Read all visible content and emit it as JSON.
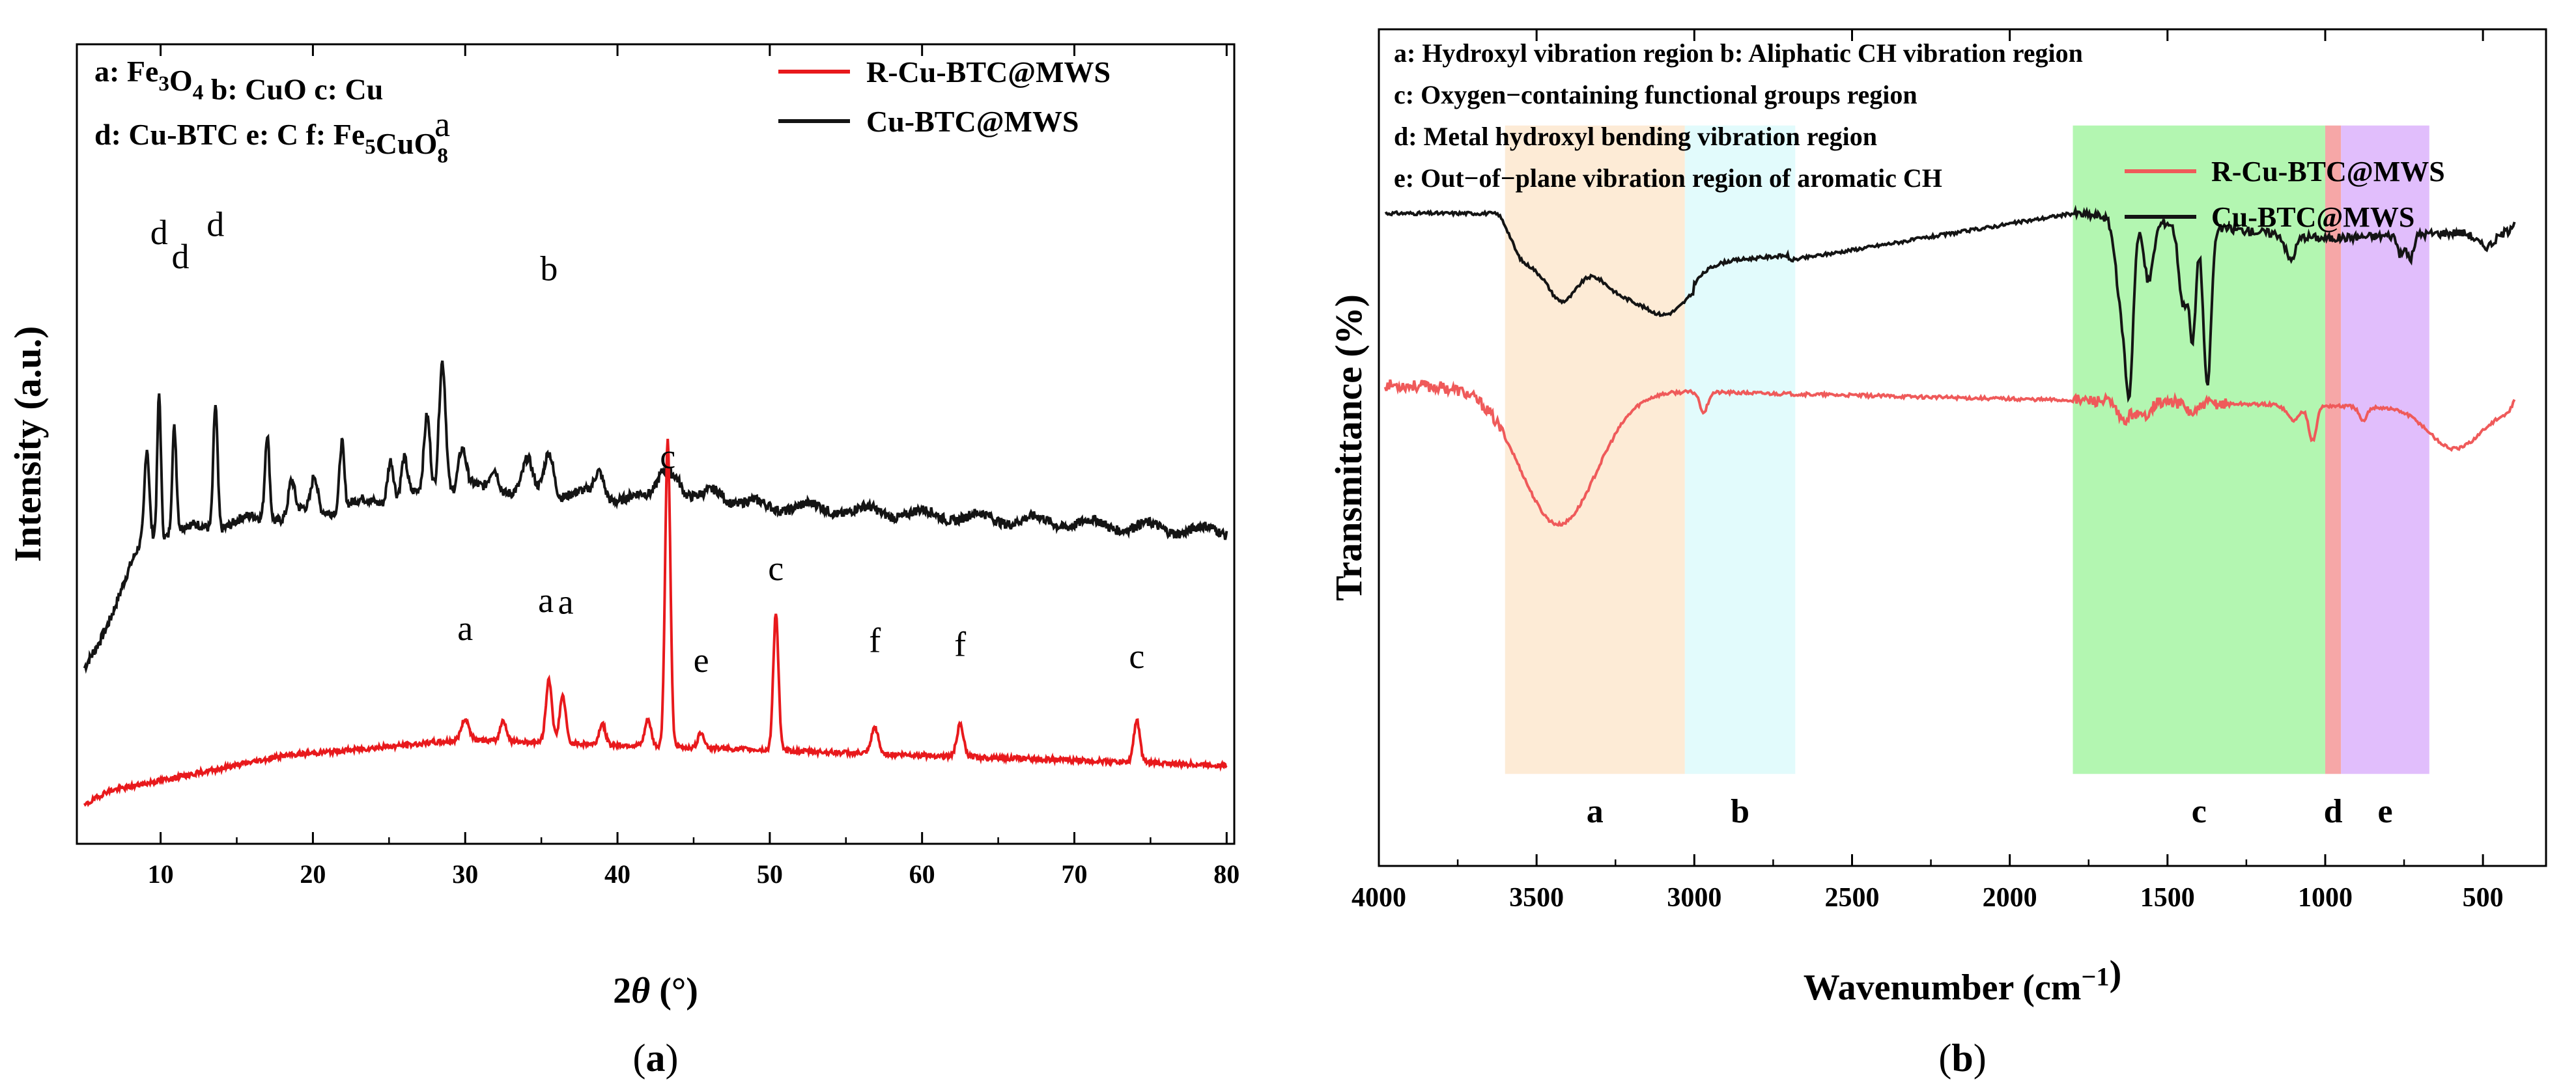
{
  "panel_a": {
    "sublabel": "(a)",
    "legend": [
      {
        "name": "R-Cu-BTC@MWS",
        "color": "#e8191c"
      },
      {
        "name": "Cu-BTC@MWS",
        "color": "#141414"
      }
    ],
    "key_lines": [
      [
        {
          "t": "a: Fe"
        },
        {
          "t": "3",
          "sub": true
        },
        {
          "t": "O"
        },
        {
          "t": "4",
          "sub": true
        },
        {
          "t": "  b: CuO c: Cu"
        }
      ],
      [
        {
          "t": "d: Cu-BTC e: C f: Fe"
        },
        {
          "t": "5",
          "sub": true
        },
        {
          "t": "CuO"
        },
        {
          "t": "8",
          "sub": true
        }
      ]
    ]
  },
  "panel_b": {
    "sublabel": "(b)",
    "legend": [
      {
        "name": "R-Cu-BTC@MWS",
        "color": "#ef5a5a"
      },
      {
        "name": "Cu-BTC@MWS",
        "color": "#141414"
      }
    ],
    "key_lines": [
      "a: Hydroxyl vibration region  b: Aliphatic CH vibration region",
      "c: Oxygen−containing functional groups region",
      "d: Metal hydroxyl bending vibration region",
      "e: Out−of−plane vibration region of aromatic CH"
    ]
  },
  "chart_data": [
    {
      "type": "line",
      "xlabel_parts": [
        {
          "t": "2"
        },
        {
          "t": "θ",
          "italic": true
        },
        {
          "t": " (°)"
        }
      ],
      "ylabel": "Intensity (a.u.)",
      "xlim": [
        4.5,
        80.5
      ],
      "x_ticks": [
        "10",
        "20",
        "30",
        "40",
        "50",
        "60",
        "70",
        "80"
      ],
      "y_ticks": [],
      "legend_position": "top-right",
      "series": [
        {
          "name": "Cu-BTC@MWS",
          "color": "#141414",
          "peaks": [
            [
              9.1,
              0.18,
              0.15
            ],
            [
              9.9,
              0.3,
              0.12
            ],
            [
              10.9,
              0.22,
              0.14
            ],
            [
              13.6,
              0.26,
              0.14
            ],
            [
              17.0,
              0.18,
              0.15
            ],
            [
              18.6,
              0.07,
              0.2
            ],
            [
              20.1,
              0.07,
              0.2
            ],
            [
              21.9,
              0.14,
              0.15
            ],
            [
              25.1,
              0.09,
              0.2
            ],
            [
              26.0,
              0.08,
              0.2
            ],
            [
              27.5,
              0.16,
              0.2
            ],
            [
              28.5,
              0.28,
              0.22
            ],
            [
              29.8,
              0.08,
              0.25
            ],
            [
              31.9,
              0.05,
              0.3
            ],
            [
              34.1,
              0.06,
              0.3
            ],
            [
              35.5,
              0.09,
              0.3
            ],
            [
              38.8,
              0.05,
              0.3
            ],
            [
              43.0,
              0.06,
              0.4
            ],
            [
              43.8,
              0.05,
              0.4
            ],
            [
              46.5,
              0.03,
              0.6
            ]
          ]
        },
        {
          "name": "R-Cu-BTC@MWS",
          "color": "#e8191c",
          "peaks": [
            [
              30.0,
              0.04,
              0.25
            ],
            [
              32.5,
              0.04,
              0.2
            ],
            [
              35.5,
              0.12,
              0.2
            ],
            [
              36.4,
              0.09,
              0.2
            ],
            [
              39.0,
              0.04,
              0.2
            ],
            [
              42.0,
              0.05,
              0.2
            ],
            [
              43.3,
              0.58,
              0.17
            ],
            [
              45.5,
              0.03,
              0.2
            ],
            [
              50.4,
              0.26,
              0.17
            ],
            [
              56.9,
              0.05,
              0.22
            ],
            [
              62.5,
              0.06,
              0.22
            ],
            [
              74.1,
              0.08,
              0.2
            ]
          ]
        }
      ],
      "peak_labels": [
        {
          "text": "d",
          "x": 9.9,
          "y": 0.75
        },
        {
          "text": "d",
          "x": 11.3,
          "y": 0.72
        },
        {
          "text": "d",
          "x": 13.6,
          "y": 0.76
        },
        {
          "text": "a",
          "x": 28.5,
          "y": 0.885
        },
        {
          "text": "b",
          "x": 35.5,
          "y": 0.705
        },
        {
          "text": "c",
          "x": 43.3,
          "y": 0.47
        },
        {
          "text": "c",
          "x": 50.4,
          "y": 0.33
        },
        {
          "text": "a",
          "x": 35.3,
          "y": 0.29
        },
        {
          "text": "a",
          "x": 36.6,
          "y": 0.288
        },
        {
          "text": "a",
          "x": 30.0,
          "y": 0.255
        },
        {
          "text": "e",
          "x": 45.5,
          "y": 0.215
        },
        {
          "text": "f",
          "x": 56.9,
          "y": 0.24
        },
        {
          "text": "f",
          "x": 62.5,
          "y": 0.235
        },
        {
          "text": "c",
          "x": 74.1,
          "y": 0.22
        }
      ]
    },
    {
      "type": "line",
      "xlabel_parts": [
        {
          "t": "Wavenumber (cm"
        },
        {
          "t": "−1",
          "sup": true
        },
        {
          "t": ")"
        }
      ],
      "ylabel": "Transmittance (%)",
      "xlim": [
        4000,
        300
      ],
      "x_ticks": [
        "4000",
        "3500",
        "3000",
        "2500",
        "2000",
        "1500",
        "1000",
        "500"
      ],
      "y_ticks": [],
      "legend_position": "right",
      "regions": [
        {
          "label": "a",
          "from": 3600,
          "to": 3030,
          "color": "#fde7cf"
        },
        {
          "label": "b",
          "from": 3030,
          "to": 2680,
          "color": "#ddfafb"
        },
        {
          "label": "c",
          "from": 1800,
          "to": 1000,
          "color": "#a6f5a3"
        },
        {
          "label": "d",
          "from": 1000,
          "to": 950,
          "color": "#f49898"
        },
        {
          "label": "e",
          "from": 950,
          "to": 670,
          "color": "#dcb3fb"
        }
      ],
      "series": [
        {
          "name": "Cu-BTC@MWS",
          "color": "#141414",
          "dips": [
            [
              3550,
              0.04,
              30
            ],
            [
              3420,
              0.09,
              50
            ],
            [
              3230,
              0.07,
              70
            ],
            [
              3090,
              0.09,
              70
            ],
            [
              1645,
              0.18,
              18
            ],
            [
              1620,
              0.28,
              12
            ],
            [
              1560,
              0.12,
              15
            ],
            [
              1450,
              0.16,
              14
            ],
            [
              1420,
              0.22,
              10
            ],
            [
              1374,
              0.32,
              12
            ],
            [
              1110,
              0.05,
              15
            ],
            [
              760,
              0.04,
              10
            ],
            [
              730,
              0.05,
              10
            ],
            [
              490,
              0.03,
              30
            ]
          ]
        },
        {
          "name": "R-Cu-BTC@MWS",
          "color": "#ef5a5a",
          "dips": [
            [
              3430,
              0.27,
              120
            ],
            [
              2970,
              0.04,
              12
            ],
            [
              1640,
              0.04,
              20
            ],
            [
              1580,
              0.03,
              20
            ],
            [
              1420,
              0.02,
              20
            ],
            [
              1100,
              0.03,
              20
            ],
            [
              1040,
              0.07,
              12
            ],
            [
              880,
              0.03,
              12
            ],
            [
              590,
              0.08,
              80
            ]
          ]
        }
      ]
    }
  ]
}
